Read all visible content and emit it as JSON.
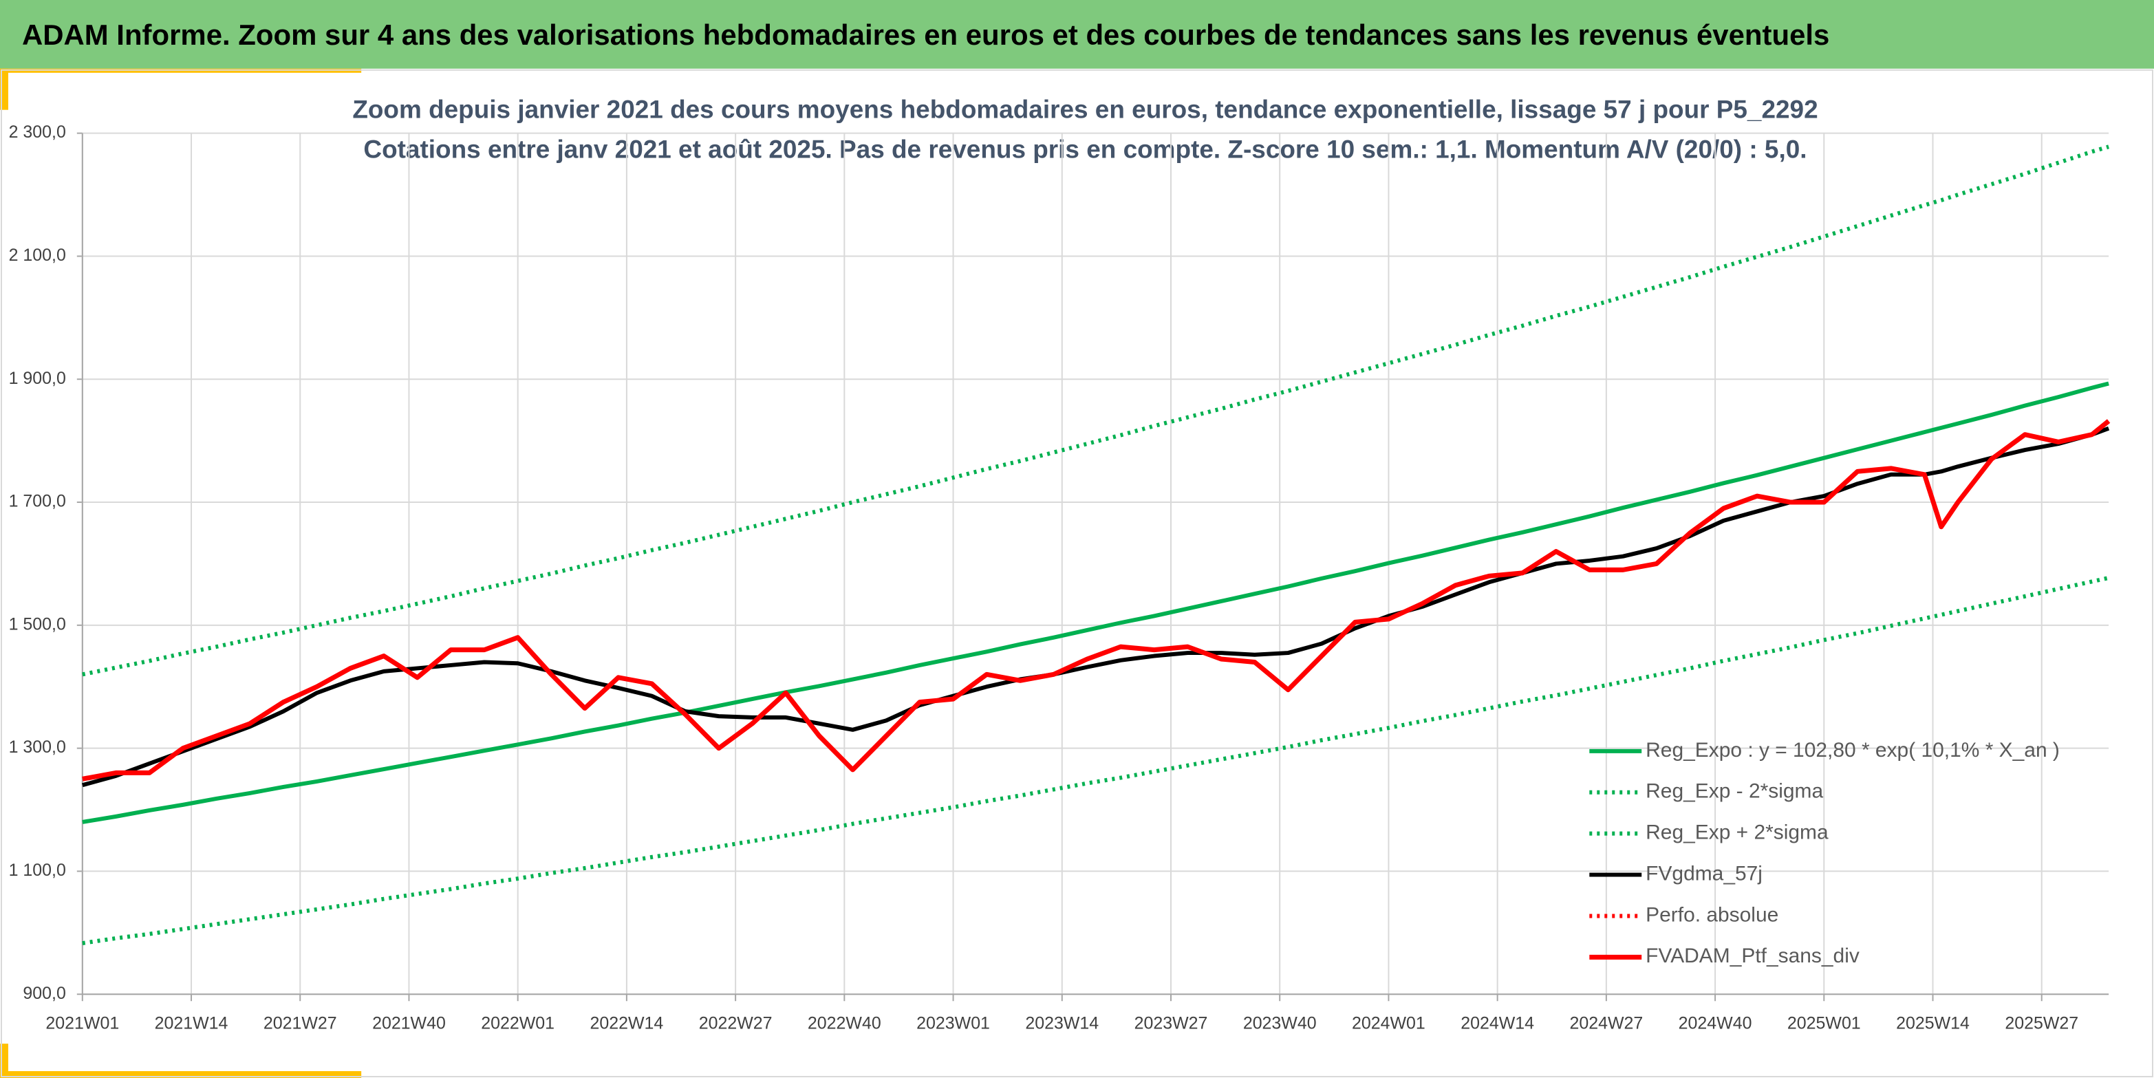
{
  "header": {
    "title": "ADAM Informe. Zoom sur 4 ans des valorisations hebdomadaires en euros et des courbes de tendances sans les revenus éventuels"
  },
  "chart_data": {
    "type": "line",
    "title": "Zoom depuis janvier 2021 des cours moyens hebdomadaires en euros, tendance exponentielle, lissage 57 j pour P5_2292",
    "subtitle": "Cotations entre janv 2021 et août 2025. Pas de revenus pris en compte. Z-score 10 sem.: 1,1. Momentum A/V (20/0) : 5,0.",
    "x": [
      0,
      4,
      8,
      12,
      16,
      20,
      24,
      28,
      32,
      36,
      40,
      44,
      48,
      52,
      56,
      60,
      64,
      68,
      72,
      76,
      80,
      84,
      88,
      92,
      96,
      100,
      104,
      108,
      112,
      116,
      120,
      124,
      128,
      132,
      136,
      140,
      144,
      148,
      152,
      156,
      160,
      164,
      168,
      172,
      176,
      180,
      184,
      188,
      192,
      196,
      200,
      204,
      208,
      212,
      216,
      220,
      222,
      224,
      228,
      232,
      236,
      240,
      242
    ],
    "xlim": [
      0,
      242
    ],
    "xticks": [
      {
        "value": 0,
        "label": "2021W01"
      },
      {
        "value": 13,
        "label": "2021W14"
      },
      {
        "value": 26,
        "label": "2021W27"
      },
      {
        "value": 39,
        "label": "2021W40"
      },
      {
        "value": 52,
        "label": "2022W01"
      },
      {
        "value": 65,
        "label": "2022W14"
      },
      {
        "value": 78,
        "label": "2022W27"
      },
      {
        "value": 91,
        "label": "2022W40"
      },
      {
        "value": 104,
        "label": "2023W01"
      },
      {
        "value": 117,
        "label": "2023W14"
      },
      {
        "value": 130,
        "label": "2023W27"
      },
      {
        "value": 143,
        "label": "2023W40"
      },
      {
        "value": 156,
        "label": "2024W01"
      },
      {
        "value": 169,
        "label": "2024W14"
      },
      {
        "value": 182,
        "label": "2024W27"
      },
      {
        "value": 195,
        "label": "2024W40"
      },
      {
        "value": 208,
        "label": "2025W01"
      },
      {
        "value": 221,
        "label": "2025W14"
      },
      {
        "value": 234,
        "label": "2025W27"
      }
    ],
    "ylim": [
      900,
      2300
    ],
    "yticks": [
      {
        "value": 900,
        "label": "900,0"
      },
      {
        "value": 1100,
        "label": "1 100,0"
      },
      {
        "value": 1300,
        "label": "1 300,0"
      },
      {
        "value": 1500,
        "label": "1 500,0"
      },
      {
        "value": 1700,
        "label": "1 700,0"
      },
      {
        "value": 1900,
        "label": "1 900,0"
      },
      {
        "value": 2100,
        "label": "2 100,0"
      },
      {
        "value": 2300,
        "label": "2 300,0"
      }
    ],
    "grid": true,
    "legend": "lower right",
    "series": [
      {
        "name": "Reg_Expo : y = 102,80 * exp( 10,1% *  X_an )",
        "color": "#00b050",
        "dash": "solid",
        "width": 3,
        "values": [
          1180,
          1189,
          1199,
          1208,
          1218,
          1227,
          1237,
          1246,
          1256,
          1266,
          1276,
          1286,
          1296,
          1306,
          1316,
          1327,
          1337,
          1348,
          1358,
          1369,
          1380,
          1391,
          1401,
          1412,
          1423,
          1435,
          1446,
          1457,
          1469,
          1480,
          1492,
          1504,
          1515,
          1527,
          1539,
          1551,
          1563,
          1576,
          1588,
          1601,
          1613,
          1626,
          1639,
          1651,
          1664,
          1677,
          1691,
          1704,
          1717,
          1731,
          1744,
          1758,
          1772,
          1786,
          1800,
          1814,
          1821,
          1828,
          1842,
          1857,
          1871,
          1886,
          1893
        ]
      },
      {
        "name": "Reg_Exp - 2*sigma",
        "color": "#00b050",
        "dash": "dotted",
        "width": 3,
        "values": [
          983,
          991,
          998,
          1006,
          1014,
          1022,
          1030,
          1038,
          1046,
          1055,
          1063,
          1071,
          1080,
          1088,
          1097,
          1105,
          1114,
          1123,
          1131,
          1140,
          1149,
          1158,
          1167,
          1177,
          1186,
          1195,
          1204,
          1214,
          1223,
          1233,
          1243,
          1252,
          1262,
          1272,
          1282,
          1292,
          1302,
          1313,
          1323,
          1333,
          1344,
          1354,
          1365,
          1376,
          1386,
          1397,
          1408,
          1419,
          1430,
          1442,
          1453,
          1464,
          1476,
          1487,
          1499,
          1511,
          1517,
          1523,
          1535,
          1547,
          1559,
          1571,
          1577
        ]
      },
      {
        "name": "Reg_Exp + 2*sigma",
        "color": "#00b050",
        "dash": "dotted",
        "width": 3,
        "values": [
          1420,
          1431,
          1442,
          1454,
          1465,
          1477,
          1488,
          1500,
          1512,
          1523,
          1535,
          1547,
          1560,
          1572,
          1584,
          1597,
          1609,
          1622,
          1634,
          1647,
          1660,
          1673,
          1686,
          1700,
          1713,
          1726,
          1740,
          1754,
          1767,
          1781,
          1795,
          1809,
          1824,
          1838,
          1852,
          1867,
          1881,
          1896,
          1911,
          1926,
          1941,
          1956,
          1972,
          1987,
          2003,
          2018,
          2034,
          2050,
          2066,
          2083,
          2099,
          2115,
          2132,
          2149,
          2166,
          2183,
          2191,
          2200,
          2217,
          2234,
          2252,
          2270,
          2278
        ]
      },
      {
        "name": "FVgdma_57j",
        "color": "#000000",
        "dash": "solid",
        "width": 3,
        "values": [
          1240,
          1255,
          1275,
          1295,
          1315,
          1335,
          1360,
          1390,
          1410,
          1425,
          1430,
          1435,
          1440,
          1438,
          1425,
          1410,
          1398,
          1385,
          1360,
          1352,
          1350,
          1350,
          1340,
          1330,
          1345,
          1370,
          1385,
          1400,
          1412,
          1420,
          1432,
          1443,
          1450,
          1455,
          1455,
          1452,
          1455,
          1470,
          1495,
          1515,
          1530,
          1550,
          1570,
          1585,
          1600,
          1605,
          1612,
          1625,
          1645,
          1670,
          1685,
          1700,
          1710,
          1730,
          1745,
          1745,
          1750,
          1758,
          1772,
          1785,
          1795,
          1810,
          1820
        ]
      },
      {
        "name": "Perfo. absolue",
        "color": "#ff0000",
        "dash": "dotted",
        "width": 3
      },
      {
        "name": "FVADAM_Ptf_sans_div",
        "color": "#ff0000",
        "dash": "solid",
        "width": 3.5,
        "values": [
          1250,
          1260,
          1260,
          1300,
          1320,
          1340,
          1375,
          1400,
          1430,
          1450,
          1415,
          1460,
          1460,
          1480,
          1420,
          1365,
          1415,
          1405,
          1355,
          1300,
          1340,
          1390,
          1320,
          1265,
          1320,
          1375,
          1380,
          1420,
          1410,
          1420,
          1445,
          1465,
          1460,
          1465,
          1445,
          1440,
          1395,
          1450,
          1505,
          1510,
          1535,
          1565,
          1580,
          1585,
          1620,
          1590,
          1590,
          1600,
          1650,
          1690,
          1710,
          1700,
          1700,
          1750,
          1755,
          1745,
          1660,
          1700,
          1770,
          1810,
          1798,
          1810,
          1832
        ]
      }
    ]
  }
}
